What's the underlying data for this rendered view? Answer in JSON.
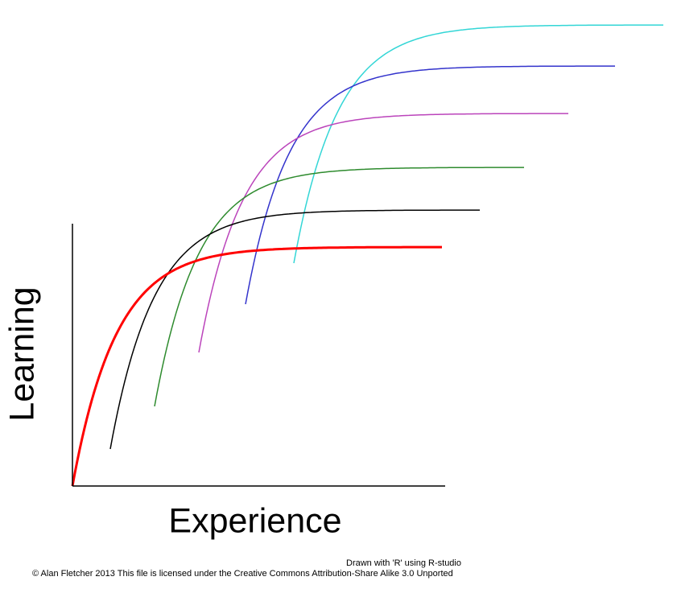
{
  "axes": {
    "x_label": "Experience",
    "y_label": "Learning"
  },
  "credits": {
    "line1": "Drawn with 'R' using R-studio",
    "line2": "© Alan Fletcher 2013 This file is licensed under the Creative Commons Attribution-Share Alike 3.0 Unported"
  }
}
